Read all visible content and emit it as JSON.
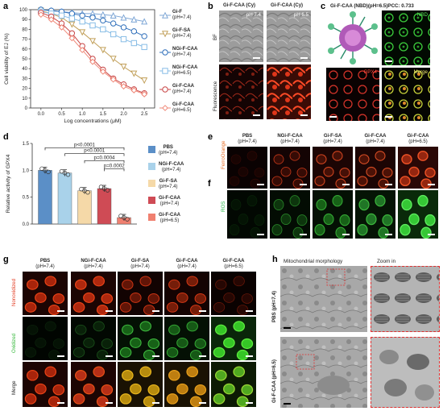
{
  "panels": {
    "a": {
      "label": "a"
    },
    "b": {
      "label": "b",
      "col1": "Gi-F-CAA (Cy)",
      "col2": "Gi-F-CAA (Cy)",
      "ph1": "pH 7.4",
      "ph2": "pH 6.5",
      "row1": "BF",
      "row2": "Fluorescence"
    },
    "c": {
      "label": "c",
      "header": "Gi-F-CAA (NBD)(pH=6.5)PCC: 0.733",
      "nbd": "NBD",
      "gpx4": "GPX4",
      "merge": "Merge"
    },
    "d": {
      "label": "d"
    },
    "e": {
      "label": "e",
      "row": "FerroOrange"
    },
    "f": {
      "label": "f",
      "row": "ROS"
    },
    "g": {
      "label": "g",
      "rows": [
        "Nonoxidized",
        "Oxidized",
        "Merge"
      ]
    },
    "h": {
      "label": "h",
      "header1": "Mitochondrial morphology",
      "header2": "Zoom in",
      "row1": "PBS (pH=7.4)",
      "row2": "Gi-F-CAA (pH=6.5)"
    }
  },
  "conditions": [
    {
      "name": "PBS",
      "ph": "(pH=7.4)"
    },
    {
      "name": "NGi-F-CAA",
      "ph": "(pH=7.4)"
    },
    {
      "name": "Gi-F-SA",
      "ph": "(pH=7.4)"
    },
    {
      "name": "Gi-F-CAA",
      "ph": "(pH=7.4)"
    },
    {
      "name": "Gi-F-CAA",
      "ph": "(pH=6.5)"
    }
  ],
  "chart_data": [
    {
      "type": "line",
      "panel": "a",
      "ylabel": "Cell viability of EJ (%)",
      "xlabel": "Log concentrations (μM)",
      "xlim": [
        -0.25,
        2.75
      ],
      "ylim": [
        0,
        100
      ],
      "xticks": [
        "0.0",
        "0.5",
        "1.0",
        "1.5",
        "2.0",
        "2.5"
      ],
      "yticks": [
        "0",
        "10",
        "20",
        "30",
        "40",
        "50",
        "60",
        "70",
        "80",
        "90",
        "100"
      ],
      "x": [
        0.0,
        0.25,
        0.5,
        0.75,
        1.0,
        1.25,
        1.5,
        1.75,
        2.0,
        2.25,
        2.5
      ],
      "series": [
        {
          "name": "Gi-F",
          "sub": "(pH=7.4)",
          "color": "#7fa7d6",
          "marker": "triangle",
          "values": [
            100,
            99,
            98,
            97,
            96,
            96,
            95,
            94,
            92,
            90,
            88
          ]
        },
        {
          "name": "Gi-F-SA",
          "sub": "(pH=7.4)",
          "color": "#c2a05a",
          "marker": "triangle-down",
          "values": [
            99,
            96,
            92,
            85,
            77,
            68,
            59,
            50,
            42,
            35,
            28
          ]
        },
        {
          "name": "NGi-F-CAA",
          "sub": "(pH=7.4)",
          "color": "#2f6fba",
          "marker": "circle",
          "values": [
            100,
            99,
            98,
            96,
            94,
            92,
            89,
            86,
            82,
            78,
            73
          ]
        },
        {
          "name": "NGi-F-CAA",
          "sub": "(pH=6.5)",
          "color": "#88bde6",
          "marker": "square",
          "values": [
            98,
            96,
            94,
            91,
            88,
            84,
            80,
            75,
            70,
            66,
            62
          ]
        },
        {
          "name": "Gi-F-CAA",
          "sub": "(pH=7.4)",
          "color": "#c84646",
          "marker": "circle",
          "values": [
            97,
            93,
            86,
            76,
            63,
            50,
            39,
            30,
            24,
            19,
            15
          ]
        },
        {
          "name": "Gi-F-CAA",
          "sub": "(pH=6.5)",
          "color": "#f08a7a",
          "marker": "diamond",
          "values": [
            95,
            90,
            82,
            71,
            59,
            47,
            37,
            29,
            22,
            18,
            14
          ]
        }
      ]
    },
    {
      "type": "bar",
      "panel": "d",
      "ylabel": "Relative activity of GPX4",
      "ylim": [
        0,
        1.5
      ],
      "yticks": [
        "0.0",
        "0.5",
        "1.0",
        "1.5"
      ],
      "categories": [
        "PBS",
        "NGi-F-CAA",
        "Gi-F-SA",
        "Gi-F-CAA",
        "Gi-F-CAA"
      ],
      "values": [
        1.0,
        0.95,
        0.62,
        0.66,
        0.12
      ],
      "colors": [
        "#5b8fc7",
        "#a9d2ea",
        "#f5d9a8",
        "#cf4b55",
        "#f08070"
      ],
      "legend": [
        {
          "name": "PBS",
          "sub": "(pH=7.4)"
        },
        {
          "name": "NGi-F-CAA",
          "sub": "(pH=7.4)"
        },
        {
          "name": "Gi-F-SA",
          "sub": "(pH=7.4)"
        },
        {
          "name": "Gi-F-CAA",
          "sub": "(pH=7.4)"
        },
        {
          "name": "Gi-F-CAA",
          "sub": "(pH=6.5)"
        }
      ],
      "annotations": [
        "p<0.0001",
        "p<0.0001",
        "p=0.0004",
        "p=0.0002"
      ]
    }
  ]
}
